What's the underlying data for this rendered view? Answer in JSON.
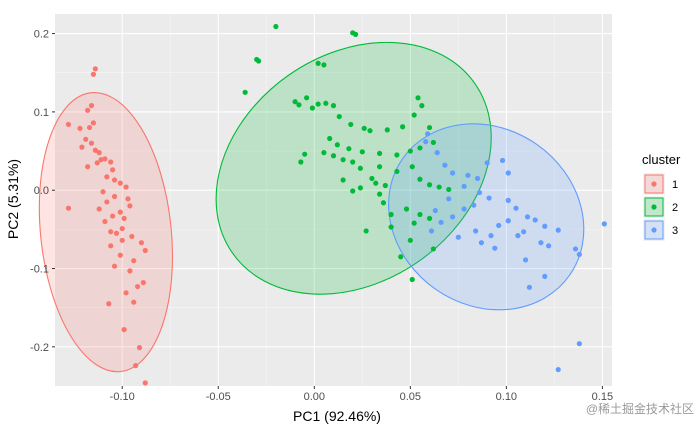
{
  "chart_data": {
    "type": "scatter",
    "xlabel": "PC1 (92.46%)",
    "ylabel": "PC2 (5.31%)",
    "xlim": [
      -0.135,
      0.155
    ],
    "ylim": [
      -0.25,
      0.225
    ],
    "x_ticks": [
      -0.1,
      -0.05,
      0.0,
      0.05,
      0.1,
      0.15
    ],
    "x_tick_labels": [
      "-0.10",
      "-0.05",
      "0.00",
      "0.05",
      "0.10",
      "0.15"
    ],
    "y_ticks": [
      -0.2,
      -0.1,
      0.0,
      0.1,
      0.2
    ],
    "y_tick_labels": [
      "-0.2",
      "-0.1",
      "0.0",
      "0.1",
      "0.2"
    ],
    "grid": true,
    "legend": {
      "title": "cluster",
      "position": "right",
      "entries": [
        "1",
        "2",
        "3"
      ]
    },
    "series": [
      {
        "name": "1",
        "color": "#F8766D",
        "ellipse": {
          "cx": -0.1085,
          "cy": -0.0535,
          "rx": 0.034,
          "ry": 0.179,
          "angle_deg": -6
        },
        "points": [
          [
            -0.114,
            0.155
          ],
          [
            -0.115,
            0.148
          ],
          [
            -0.128,
            0.084
          ],
          [
            -0.122,
            0.079
          ],
          [
            -0.116,
            0.108
          ],
          [
            -0.118,
            0.102
          ],
          [
            -0.115,
            0.086
          ],
          [
            -0.117,
            0.08
          ],
          [
            -0.119,
            0.065
          ],
          [
            -0.116,
            0.06
          ],
          [
            -0.121,
            0.055
          ],
          [
            -0.114,
            0.051
          ],
          [
            -0.112,
            0.048
          ],
          [
            -0.109,
            0.04
          ],
          [
            -0.111,
            0.039
          ],
          [
            -0.106,
            0.036
          ],
          [
            -0.113,
            0.035
          ],
          [
            -0.118,
            0.03
          ],
          [
            -0.105,
            0.026
          ],
          [
            -0.108,
            0.017
          ],
          [
            -0.104,
            0.013
          ],
          [
            -0.101,
            0.009
          ],
          [
            -0.098,
            0.004
          ],
          [
            -0.11,
            -0.002
          ],
          [
            -0.104,
            -0.008
          ],
          [
            -0.097,
            -0.011
          ],
          [
            -0.108,
            -0.015
          ],
          [
            -0.096,
            -0.02
          ],
          [
            -0.112,
            -0.024
          ],
          [
            -0.101,
            -0.028
          ],
          [
            -0.128,
            -0.023
          ],
          [
            -0.105,
            -0.033
          ],
          [
            -0.099,
            -0.036
          ],
          [
            -0.109,
            -0.04
          ],
          [
            -0.106,
            -0.053
          ],
          [
            -0.103,
            -0.055
          ],
          [
            -0.1,
            -0.049
          ],
          [
            -0.095,
            -0.059
          ],
          [
            -0.09,
            -0.067
          ],
          [
            -0.106,
            -0.071
          ],
          [
            -0.101,
            -0.083
          ],
          [
            -0.104,
            -0.097
          ],
          [
            -0.089,
            -0.118
          ],
          [
            -0.092,
            -0.123
          ],
          [
            -0.107,
            -0.145
          ],
          [
            -0.099,
            -0.178
          ],
          [
            -0.091,
            -0.201
          ],
          [
            -0.093,
            -0.224
          ],
          [
            -0.088,
            -0.246
          ],
          [
            -0.094,
            -0.143
          ],
          [
            -0.098,
            -0.131
          ],
          [
            -0.096,
            -0.103
          ],
          [
            -0.094,
            -0.09
          ],
          [
            -0.088,
            -0.077
          ],
          [
            -0.1,
            -0.064
          ]
        ]
      },
      {
        "name": "2",
        "color": "#00BA38",
        "ellipse": {
          "cx": 0.0205,
          "cy": 0.028,
          "rx": 0.077,
          "ry": 0.145,
          "angle_deg": -35
        },
        "points": [
          [
            -0.03,
            0.167
          ],
          [
            -0.029,
            0.165
          ],
          [
            -0.02,
            0.209
          ],
          [
            -0.036,
            0.125
          ],
          [
            0.02,
            0.201
          ],
          [
            0.0215,
            0.199
          ],
          [
            0.002,
            0.162
          ],
          [
            0.005,
            0.16
          ],
          [
            -0.008,
            0.109
          ],
          [
            -0.004,
            0.118
          ],
          [
            -0.01,
            0.113
          ],
          [
            0.002,
            0.11
          ],
          [
            -0.001,
            0.105
          ],
          [
            0.006,
            0.111
          ],
          [
            0.01,
            0.108
          ],
          [
            0.013,
            0.094
          ],
          [
            0.019,
            0.084
          ],
          [
            0.026,
            0.079
          ],
          [
            0.029,
            0.076
          ],
          [
            0.038,
            0.077
          ],
          [
            0.046,
            0.081
          ],
          [
            0.052,
            0.096
          ],
          [
            0.054,
            0.118
          ],
          [
            0.056,
            0.108
          ],
          [
            0.06,
            0.08
          ],
          [
            0.062,
            0.061
          ],
          [
            0.055,
            0.054
          ],
          [
            0.05,
            0.05
          ],
          [
            0.043,
            0.045
          ],
          [
            0.034,
            0.047
          ],
          [
            0.025,
            0.049
          ],
          [
            0.018,
            0.053
          ],
          [
            0.012,
            0.058
          ],
          [
            0.008,
            0.066
          ],
          [
            -0.005,
            0.046
          ],
          [
            -0.007,
            0.036
          ],
          [
            0.005,
            0.048
          ],
          [
            0.01,
            0.044
          ],
          [
            0.015,
            0.039
          ],
          [
            0.02,
            0.036
          ],
          [
            0.024,
            0.028
          ],
          [
            0.034,
            0.03
          ],
          [
            0.043,
            0.024
          ],
          [
            0.051,
            0.03
          ],
          [
            0.055,
            0.014
          ],
          [
            0.06,
            0.007
          ],
          [
            0.065,
            0.004
          ],
          [
            0.07,
            0.001
          ],
          [
            0.037,
            0.006
          ],
          [
            0.032,
            0.009
          ],
          [
            0.024,
            0.003
          ],
          [
            0.015,
            0.013
          ],
          [
            0.02,
            -0.001
          ],
          [
            0.036,
            -0.016
          ],
          [
            0.048,
            -0.024
          ],
          [
            0.055,
            -0.031
          ],
          [
            0.06,
            -0.036
          ],
          [
            0.052,
            -0.042
          ],
          [
            0.04,
            -0.047
          ],
          [
            0.027,
            -0.052
          ],
          [
            0.04,
            -0.031
          ],
          [
            0.05,
            -0.064
          ],
          [
            0.062,
            -0.075
          ],
          [
            0.045,
            -0.085
          ],
          [
            0.051,
            -0.114
          ],
          [
            0.034,
            -0.005
          ],
          [
            0.03,
            0.015
          ]
        ]
      },
      {
        "name": "3",
        "color": "#619CFF",
        "ellipse": {
          "cx": 0.0895,
          "cy": -0.034,
          "rx": 0.046,
          "ry": 0.13,
          "angle_deg": -55
        },
        "points": [
          [
            0.059,
            0.072
          ],
          [
            0.058,
            0.062
          ],
          [
            0.064,
            0.048
          ],
          [
            0.068,
            0.032
          ],
          [
            0.072,
            0.022
          ],
          [
            0.08,
            0.019
          ],
          [
            0.09,
            0.035
          ],
          [
            0.098,
            0.038
          ],
          [
            0.101,
            0.022
          ],
          [
            0.085,
            0.015
          ],
          [
            0.078,
            0.005
          ],
          [
            0.086,
            -0.003
          ],
          [
            0.091,
            -0.01
          ],
          [
            0.083,
            -0.019
          ],
          [
            0.078,
            -0.024
          ],
          [
            0.072,
            -0.034
          ],
          [
            0.066,
            -0.041
          ],
          [
            0.061,
            -0.052
          ],
          [
            0.084,
            -0.052
          ],
          [
            0.092,
            -0.058
          ],
          [
            0.096,
            -0.045
          ],
          [
            0.101,
            -0.039
          ],
          [
            0.106,
            -0.058
          ],
          [
            0.109,
            -0.053
          ],
          [
            0.118,
            -0.067
          ],
          [
            0.122,
            -0.071
          ],
          [
            0.12,
            -0.046
          ],
          [
            0.111,
            -0.034
          ],
          [
            0.105,
            -0.023
          ],
          [
            0.101,
            -0.013
          ],
          [
            0.115,
            -0.038
          ],
          [
            0.127,
            -0.051
          ],
          [
            0.136,
            -0.075
          ],
          [
            0.138,
            -0.082
          ],
          [
            0.138,
            -0.196
          ],
          [
            0.127,
            -0.229
          ],
          [
            0.151,
            -0.043
          ],
          [
            0.094,
            -0.074
          ],
          [
            0.11,
            -0.089
          ],
          [
            0.12,
            -0.11
          ],
          [
            0.112,
            -0.124
          ],
          [
            0.07,
            -0.011
          ],
          [
            0.075,
            -0.06
          ],
          [
            0.087,
            -0.067
          ],
          [
            0.063,
            -0.026
          ]
        ]
      }
    ]
  },
  "watermark": "@稀土掘金技术社区"
}
